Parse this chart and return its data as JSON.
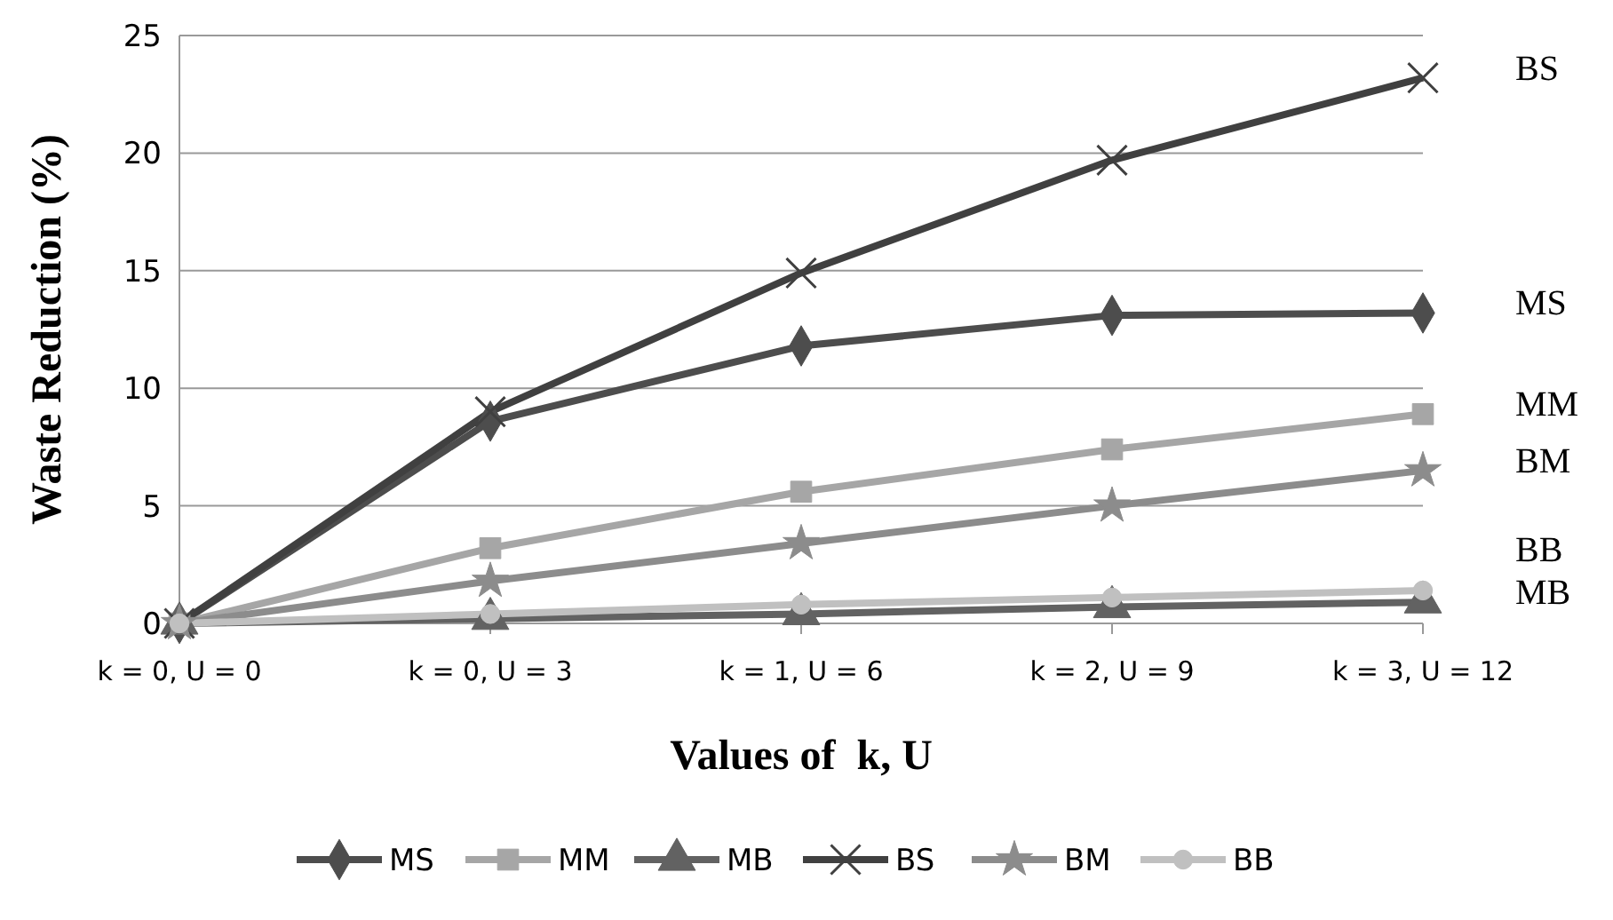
{
  "chart_data": {
    "type": "line",
    "xlabel": "Values of  k, U",
    "ylabel": "Waste Reduction (%)",
    "categories": [
      "k = 0, U = 0",
      "k = 0, U = 3",
      "k = 1, U = 6",
      "k = 2, U = 9",
      "k = 3, U = 12"
    ],
    "ylim": [
      0,
      25
    ],
    "yticks": [
      0,
      5,
      10,
      15,
      20,
      25
    ],
    "grid": "y",
    "legend": "bottom",
    "line_style": "solid",
    "series": [
      {
        "name": "MS",
        "color": "#4d4d4d",
        "marker": "diamond",
        "values": [
          0,
          8.6,
          11.8,
          13.1,
          13.2
        ]
      },
      {
        "name": "MM",
        "color": "#a6a6a6",
        "marker": "square",
        "values": [
          0,
          3.2,
          5.6,
          7.4,
          8.9
        ]
      },
      {
        "name": "MB",
        "color": "#626262",
        "marker": "triangle",
        "values": [
          0,
          0.2,
          0.4,
          0.7,
          0.9
        ]
      },
      {
        "name": "BS",
        "color": "#404040",
        "marker": "cross",
        "values": [
          0,
          9.0,
          14.9,
          19.7,
          23.2
        ]
      },
      {
        "name": "BM",
        "color": "#8c8c8c",
        "marker": "star",
        "values": [
          0,
          1.8,
          3.4,
          5.0,
          6.5
        ]
      },
      {
        "name": "BB",
        "color": "#c0c0c0",
        "marker": "circle",
        "values": [
          0,
          0.4,
          0.8,
          1.1,
          1.4
        ]
      }
    ]
  }
}
